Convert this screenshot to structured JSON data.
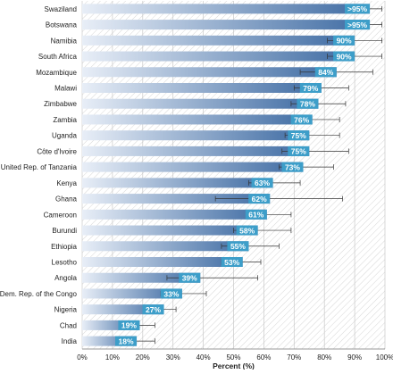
{
  "chart_data": {
    "type": "bar",
    "orientation": "horizontal",
    "categories": [
      "Swaziland",
      "Botswana",
      "Namibia",
      "South Africa",
      "Mozambique",
      "Malawi",
      "Zimbabwe",
      "Zambia",
      "Uganda",
      "Côte d'Ivoire",
      "United Rep. of Tanzania",
      "Kenya",
      "Ghana",
      "Cameroon",
      "Burundi",
      "Ethiopia",
      "Lesotho",
      "Angola",
      "Dem. Rep. of the Congo",
      "Nigeria",
      "Chad",
      "India"
    ],
    "values": [
      95,
      95,
      90,
      90,
      84,
      79,
      78,
      76,
      75,
      75,
      73,
      63,
      62,
      61,
      58,
      55,
      53,
      39,
      33,
      27,
      19,
      18
    ],
    "data_labels": [
      ">95%",
      ">95%",
      "90%",
      "90%",
      "84%",
      "79%",
      "78%",
      "76%",
      "75%",
      "75%",
      "73%",
      "63%",
      "62%",
      "61%",
      "58%",
      "55%",
      "53%",
      "39%",
      "33%",
      "27%",
      "19%",
      "18%"
    ],
    "error_low": [
      94,
      94,
      81,
      81,
      72,
      70,
      69,
      70,
      67,
      66,
      65,
      55,
      44,
      55,
      50,
      46,
      46,
      28,
      26,
      22,
      15,
      14
    ],
    "error_high": [
      99,
      99,
      99,
      99,
      96,
      88,
      87,
      85,
      85,
      88,
      83,
      72,
      86,
      69,
      69,
      65,
      59,
      58,
      41,
      31,
      24,
      24
    ],
    "xlabel": "Percent (%)",
    "ylabel": "",
    "xlim": [
      0,
      100
    ],
    "xticks": [
      "0%",
      "10%",
      "20%",
      "30%",
      "40%",
      "50%",
      "60%",
      "70%",
      "80%",
      "90%",
      "100%"
    ],
    "grid": true,
    "colors": {
      "bar_start": "#e8eef7",
      "bar_end": "#3d6aa2",
      "label_box": "#3d9ec9",
      "label_text": "#ffffff",
      "error_bar": "#333333",
      "hatch": "#d6d6d6"
    }
  }
}
